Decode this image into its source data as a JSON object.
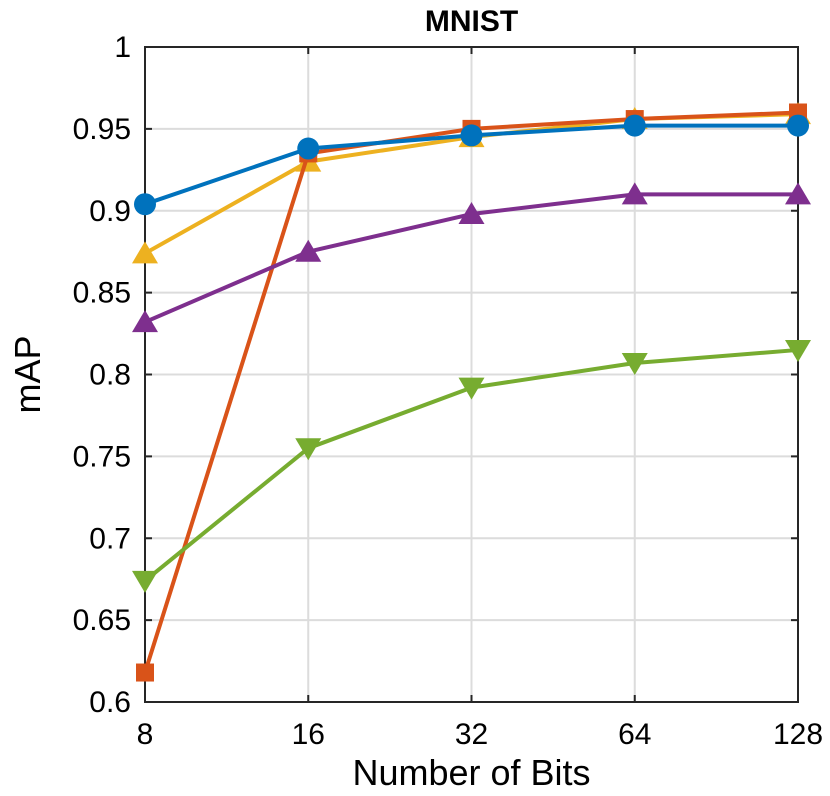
{
  "chart_data": {
    "type": "line",
    "title": "MNIST",
    "xlabel": "Number of Bits",
    "ylabel": "mAP",
    "categories": [
      "8",
      "16",
      "32",
      "64",
      "128"
    ],
    "ylim": [
      0.6,
      1.0
    ],
    "yticks": [
      0.6,
      0.65,
      0.7,
      0.75,
      0.8,
      0.85,
      0.9,
      0.95,
      1
    ],
    "ytick_labels": [
      "0.6",
      "0.65",
      "0.7",
      "0.75",
      "0.8",
      "0.85",
      "0.9",
      "0.95",
      "1"
    ],
    "grid": true,
    "series": [
      {
        "name": "series-yellow",
        "color": "#EDB120",
        "marker": "triangle-up",
        "values": [
          0.874,
          0.93,
          0.945,
          0.956,
          0.959
        ]
      },
      {
        "name": "series-orange",
        "color": "#D95319",
        "marker": "square",
        "values": [
          0.618,
          0.935,
          0.95,
          0.956,
          0.96
        ]
      },
      {
        "name": "series-blue",
        "color": "#0072BD",
        "marker": "circle",
        "values": [
          0.904,
          0.938,
          0.946,
          0.952,
          0.952
        ]
      },
      {
        "name": "series-purple",
        "color": "#7E2F8E",
        "marker": "triangle-up",
        "values": [
          0.832,
          0.875,
          0.898,
          0.91,
          0.91
        ]
      },
      {
        "name": "series-green",
        "color": "#77AC30",
        "marker": "triangle-down",
        "values": [
          0.674,
          0.755,
          0.792,
          0.807,
          0.815
        ]
      }
    ]
  }
}
